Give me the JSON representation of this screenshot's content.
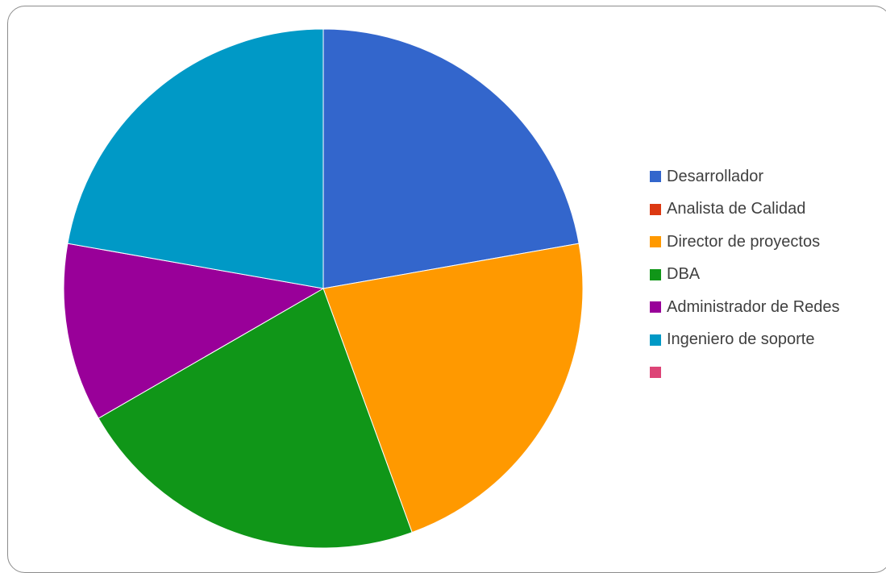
{
  "chart_data": {
    "type": "pie",
    "title": "",
    "legend_position": "right",
    "categories": [
      "Desarrollador",
      "Analista de Calidad",
      "Director de proyectos",
      "DBA",
      "Administrador de Redes",
      "Ingeniero de soporte",
      ""
    ],
    "values": [
      2,
      0,
      2,
      2,
      1,
      2,
      0
    ],
    "colors": [
      "#3366cc",
      "#dc3912",
      "#ff9900",
      "#109618",
      "#990099",
      "#0099c6",
      "#dd4477"
    ]
  }
}
